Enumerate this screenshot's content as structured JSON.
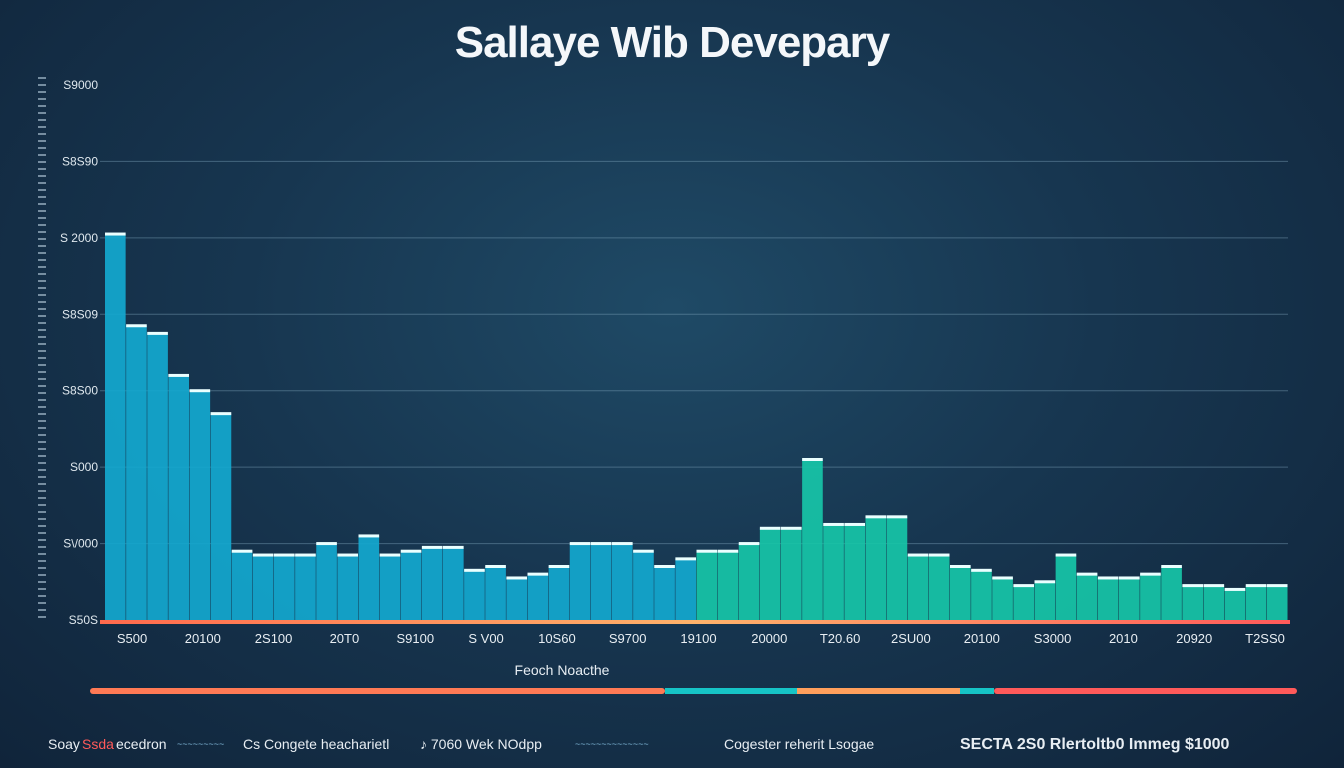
{
  "page": {
    "title": "Sallaye Wib Devepary"
  },
  "chart_data": {
    "type": "bar",
    "title": "Sallaye Wib Devepary",
    "xlabel": "Feoch Noacthe",
    "ylabel": "",
    "y_tick_labels": [
      "S50S",
      "S\\/000",
      "S000",
      "S8S00",
      "S8S09",
      "S 2000",
      "S8S90",
      "S9000"
    ],
    "x_tick_labels": [
      "S500",
      "20100",
      "2S100",
      "20T0",
      "S9100",
      "S V00",
      "10S60",
      "S9700",
      "19100",
      "20000",
      "T20.60",
      "2SU00",
      "20100",
      "S3000",
      "2010",
      "20920",
      "T2SS0"
    ],
    "ylim": [
      0,
      7
    ],
    "grid": true,
    "legend": "none",
    "colors": {
      "start": "#1b8fd6",
      "mid": "#16c4c6",
      "end": "#1ed58a"
    },
    "values": [
      5.05,
      3.85,
      3.75,
      3.2,
      3.0,
      2.7,
      0.9,
      0.85,
      0.85,
      0.85,
      1.0,
      0.85,
      1.1,
      0.85,
      0.9,
      0.95,
      0.95,
      0.65,
      0.7,
      0.55,
      0.6,
      0.7,
      1.0,
      1.0,
      1.0,
      0.9,
      0.7,
      0.8,
      0.9,
      0.9,
      1.0,
      1.2,
      1.2,
      2.1,
      1.25,
      1.25,
      1.35,
      1.35,
      0.85,
      0.85,
      0.7,
      0.65,
      0.55,
      0.45,
      0.5,
      0.85,
      0.6,
      0.55,
      0.55,
      0.6,
      0.7,
      0.45,
      0.45,
      0.4,
      0.45,
      0.45
    ]
  },
  "footer": {
    "items": [
      {
        "text": "Soay"
      },
      {
        "text": "Ssda"
      },
      {
        "text": "ecedron"
      },
      {
        "text": "~~~~~~~~~"
      },
      {
        "text": "Cs Congete heacharietl"
      },
      {
        "text": "♪ 7060 Wek NOdpp"
      },
      {
        "text": "~~~~~~~~~~~~~~"
      },
      {
        "text": "Cogester reherit Lsogae"
      },
      {
        "text": "SECTA 2S0 Rlertoltb0 Immeg $1000"
      }
    ]
  }
}
